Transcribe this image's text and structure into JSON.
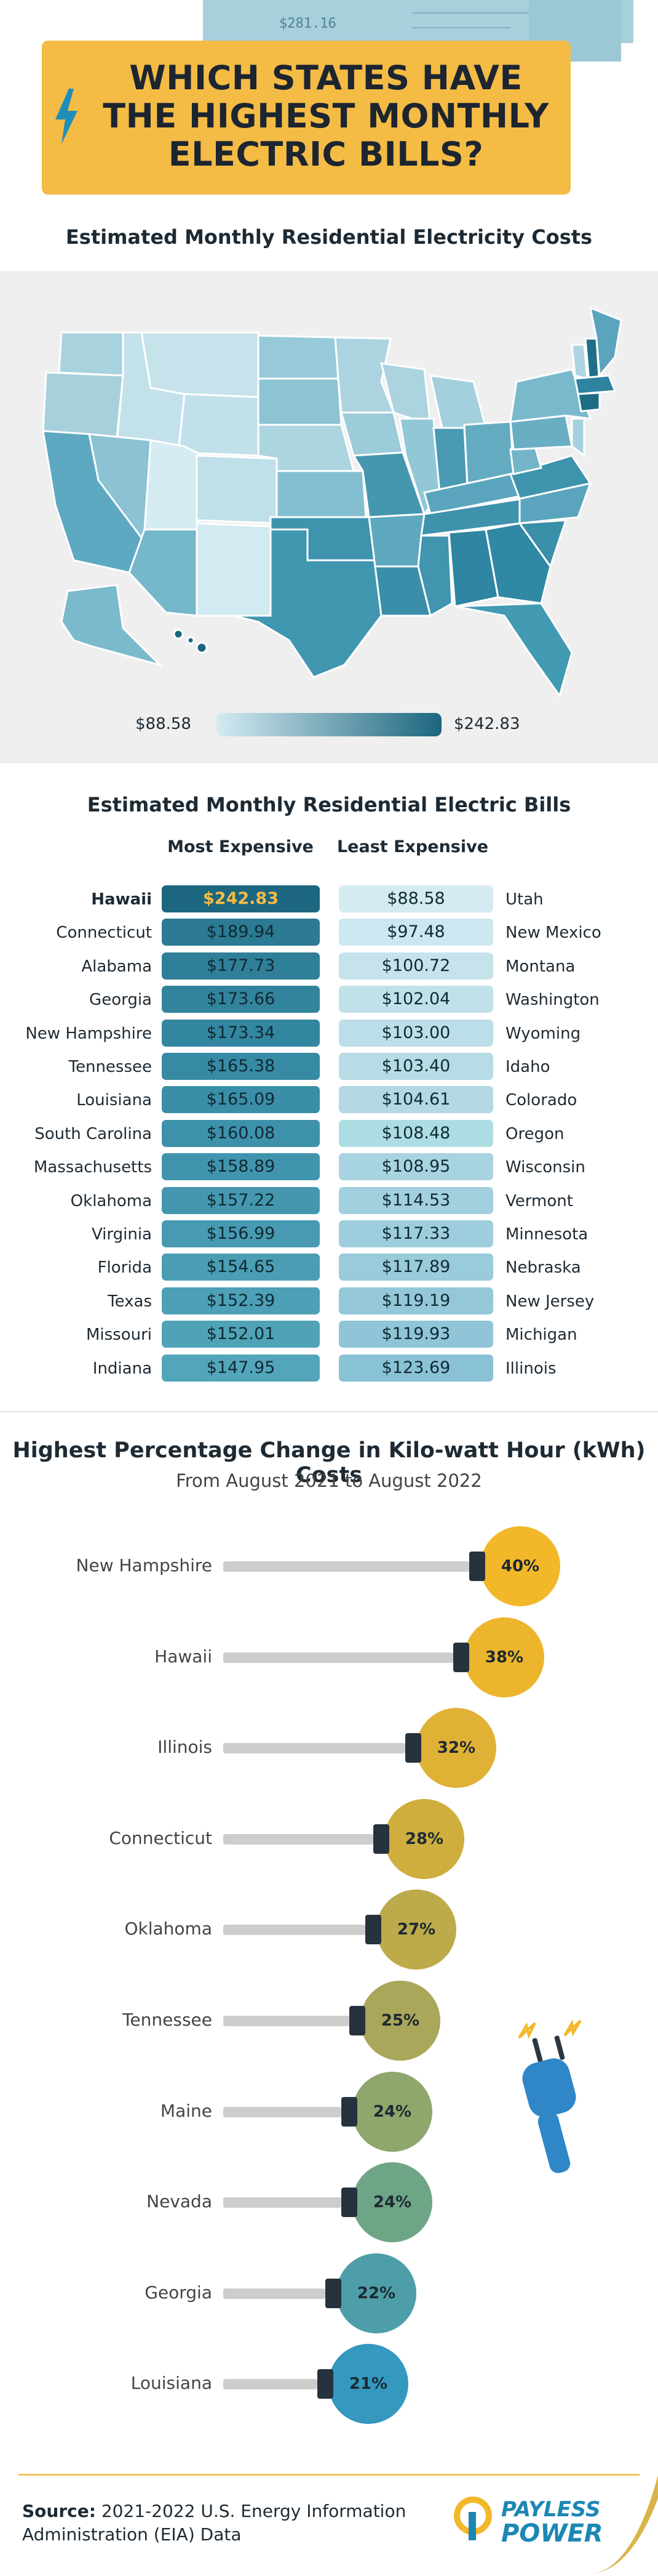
{
  "header": {
    "title_lines": [
      "WHICH STATES HAVE",
      "THE HIGHEST MONTHLY",
      "ELECTRIC BILLS?"
    ],
    "bill_amount": "$281.16",
    "banner_color": "#f4bb45",
    "icon": "lightning-bolt-icon"
  },
  "map_section": {
    "title": "Estimated Monthly Residential Electricity Costs",
    "legend_min": "$88.58",
    "legend_max": "$242.83",
    "legend_colors": [
      "#d4ebf2",
      "#1c667f"
    ]
  },
  "bills_section": {
    "title": "Estimated Monthly Residential Electric Bills",
    "most_header": "Most Expensive",
    "least_header": "Least Expensive",
    "most": [
      {
        "state": "Hawaii",
        "value": "$242.83"
      },
      {
        "state": "Connecticut",
        "value": "$189.94"
      },
      {
        "state": "Alabama",
        "value": "$177.73"
      },
      {
        "state": "Georgia",
        "value": "$173.66"
      },
      {
        "state": "New Hampshire",
        "value": "$173.34"
      },
      {
        "state": "Tennessee",
        "value": "$165.38"
      },
      {
        "state": "Louisiana",
        "value": "$165.09"
      },
      {
        "state": "South Carolina",
        "value": "$160.08"
      },
      {
        "state": "Massachusetts",
        "value": "$158.89"
      },
      {
        "state": "Oklahoma",
        "value": "$157.22"
      },
      {
        "state": "Virginia",
        "value": "$156.99"
      },
      {
        "state": "Florida",
        "value": "$154.65"
      },
      {
        "state": "Texas",
        "value": "$152.39"
      },
      {
        "state": "Missouri",
        "value": "$152.01"
      },
      {
        "state": "Indiana",
        "value": "$147.95"
      }
    ],
    "least": [
      {
        "state": "Utah",
        "value": "$88.58"
      },
      {
        "state": "New Mexico",
        "value": "$97.48"
      },
      {
        "state": "Montana",
        "value": "$100.72"
      },
      {
        "state": "Washington",
        "value": "$102.04"
      },
      {
        "state": "Wyoming",
        "value": "$103.00"
      },
      {
        "state": "Idaho",
        "value": "$103.40"
      },
      {
        "state": "Colorado",
        "value": "$104.61"
      },
      {
        "state": "Oregon",
        "value": "$108.48"
      },
      {
        "state": "Wisconsin",
        "value": "$108.95"
      },
      {
        "state": "Vermont",
        "value": "$114.53"
      },
      {
        "state": "Minnesota",
        "value": "$117.33"
      },
      {
        "state": "Nebraska",
        "value": "$117.89"
      },
      {
        "state": "New Jersey",
        "value": "$119.19"
      },
      {
        "state": "Michigan",
        "value": "$119.93"
      },
      {
        "state": "Illinois",
        "value": "$123.69"
      }
    ],
    "top_value_text_color": "#f4bb45"
  },
  "kwh_section": {
    "title": "Highest Percentage Change in Kilo-watt Hour (kWh) Costs",
    "subtitle": "From August 2021 to August 2022",
    "items": [
      {
        "state": "New Hampshire",
        "label": "40%",
        "value": 40,
        "color": "#f2b82a"
      },
      {
        "state": "Hawaii",
        "label": "38%",
        "value": 38,
        "color": "#edb52c"
      },
      {
        "state": "Illinois",
        "label": "32%",
        "value": 32,
        "color": "#dfb135"
      },
      {
        "state": "Connecticut",
        "label": "28%",
        "value": 28,
        "color": "#cfae3e"
      },
      {
        "state": "Oklahoma",
        "label": "27%",
        "value": 27,
        "color": "#bdaa4a"
      },
      {
        "state": "Tennessee",
        "label": "25%",
        "value": 25,
        "color": "#aaa65a"
      },
      {
        "state": "Maine",
        "label": "24%",
        "value": 24,
        "color": "#8fa66c"
      },
      {
        "state": "Nevada",
        "label": "24%",
        "value": 24,
        "color": "#6ea587"
      },
      {
        "state": "Georgia",
        "label": "22%",
        "value": 22,
        "color": "#4d9ea8"
      },
      {
        "state": "Louisiana",
        "label": "21%",
        "value": 21,
        "color": "#3498bf"
      }
    ]
  },
  "footer": {
    "source_label": "Source:",
    "source_text": "2021-2022 U.S. Energy Information Administration (EIA) Data",
    "brand_line1": "PAYLESS",
    "brand_line2": "POWER",
    "brand_color": "#1c87b4"
  }
}
